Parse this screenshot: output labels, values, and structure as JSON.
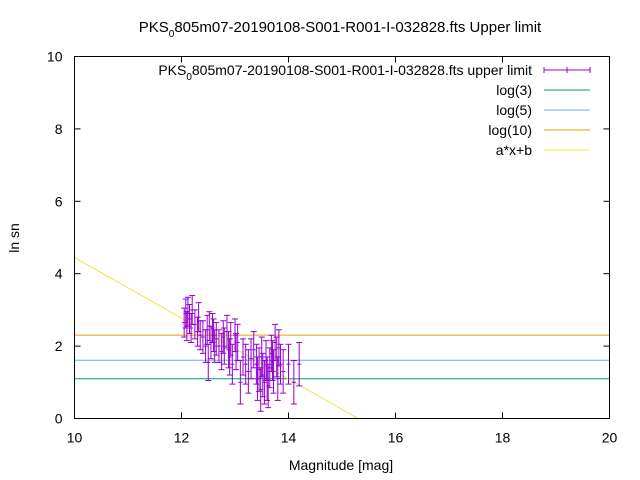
{
  "chart_data": {
    "type": "scatter",
    "title": {
      "prefix": "PKS",
      "sub": "0",
      "suffix": "805m07-20190108-S001-R001-I-032828.fts Upper limit"
    },
    "xlabel": "Magnitude [mag]",
    "ylabel": "ln sn",
    "xlim": [
      10,
      20
    ],
    "ylim": [
      0,
      10
    ],
    "xticks": [
      "10",
      "12",
      "14",
      "16",
      "18",
      "20"
    ],
    "yticks": [
      "0",
      "2",
      "4",
      "6",
      "8",
      "10"
    ],
    "grid": false,
    "legend_position": "top-right",
    "colors": {
      "points": "#9400d3",
      "log3": "#009e73",
      "log5": "#56b4e9",
      "log10": "#e69f00",
      "fit": "#f0e442"
    },
    "legend": [
      {
        "key": "points",
        "prefix": "PKS",
        "sub": "0",
        "suffix": "805m07-20190108-S001-R001-I-032828.fts upper limit"
      },
      {
        "key": "log3",
        "label": "log(3)"
      },
      {
        "key": "log5",
        "label": "log(5)"
      },
      {
        "key": "log10",
        "label": "log(10)"
      },
      {
        "key": "fit",
        "label": "a*x+b"
      }
    ],
    "hlines": [
      {
        "key": "log3",
        "y": 1.0986
      },
      {
        "key": "log5",
        "y": 1.6094
      },
      {
        "key": "log10",
        "y": 2.3026
      }
    ],
    "fit_line": {
      "x": [
        10,
        15.3
      ],
      "y": [
        4.45,
        0.0
      ]
    },
    "series": [
      {
        "x": [
          12.05,
          12.08,
          12.1,
          12.12,
          12.15,
          12.18,
          12.2,
          12.25,
          12.3,
          12.32,
          12.35,
          12.4,
          12.45,
          12.48,
          12.5,
          12.52,
          12.55,
          12.58,
          12.6,
          12.62,
          12.65,
          12.7,
          12.75,
          12.78,
          12.8,
          12.85,
          12.88,
          12.9,
          12.92,
          12.95,
          13.0,
          13.02,
          13.05,
          13.1,
          13.15,
          13.2,
          13.25,
          13.3,
          13.35,
          13.4,
          13.42,
          13.45,
          13.48,
          13.5,
          13.52,
          13.55,
          13.58,
          13.6,
          13.62,
          13.65,
          13.68,
          13.7,
          13.72,
          13.75,
          13.78,
          13.8,
          13.82,
          13.85,
          13.9,
          14.0,
          14.1,
          14.2
        ],
        "y": [
          2.65,
          2.9,
          2.55,
          2.95,
          2.75,
          2.5,
          3.0,
          2.6,
          2.4,
          2.8,
          2.3,
          2.25,
          2.0,
          2.45,
          1.55,
          2.55,
          2.1,
          2.5,
          2.3,
          2.0,
          2.2,
          2.0,
          1.85,
          2.25,
          2.0,
          2.4,
          1.9,
          1.7,
          2.2,
          1.5,
          2.3,
          1.85,
          2.1,
          1.0,
          1.7,
          1.5,
          1.3,
          1.65,
          1.9,
          1.5,
          1.1,
          1.35,
          0.8,
          1.7,
          1.2,
          1.0,
          1.6,
          1.1,
          0.9,
          1.4,
          1.8,
          1.6,
          1.3,
          2.1,
          1.7,
          1.1,
          1.95,
          1.5,
          1.3,
          1.5,
          1.0,
          1.5
        ],
        "yerr": [
          0.4,
          0.4,
          0.4,
          0.4,
          0.4,
          0.4,
          0.4,
          0.4,
          0.4,
          0.4,
          0.4,
          0.45,
          0.45,
          0.4,
          0.5,
          0.4,
          0.45,
          0.4,
          0.45,
          0.45,
          0.45,
          0.45,
          0.5,
          0.45,
          0.5,
          0.45,
          0.5,
          0.5,
          0.45,
          0.55,
          0.45,
          0.5,
          0.5,
          0.6,
          0.5,
          0.55,
          0.6,
          0.55,
          0.5,
          0.55,
          0.6,
          0.6,
          0.6,
          0.55,
          0.6,
          0.6,
          0.55,
          0.6,
          0.6,
          0.55,
          0.5,
          0.55,
          0.6,
          0.5,
          0.55,
          0.6,
          0.5,
          0.55,
          0.6,
          0.55,
          0.6,
          0.6
        ]
      }
    ]
  }
}
